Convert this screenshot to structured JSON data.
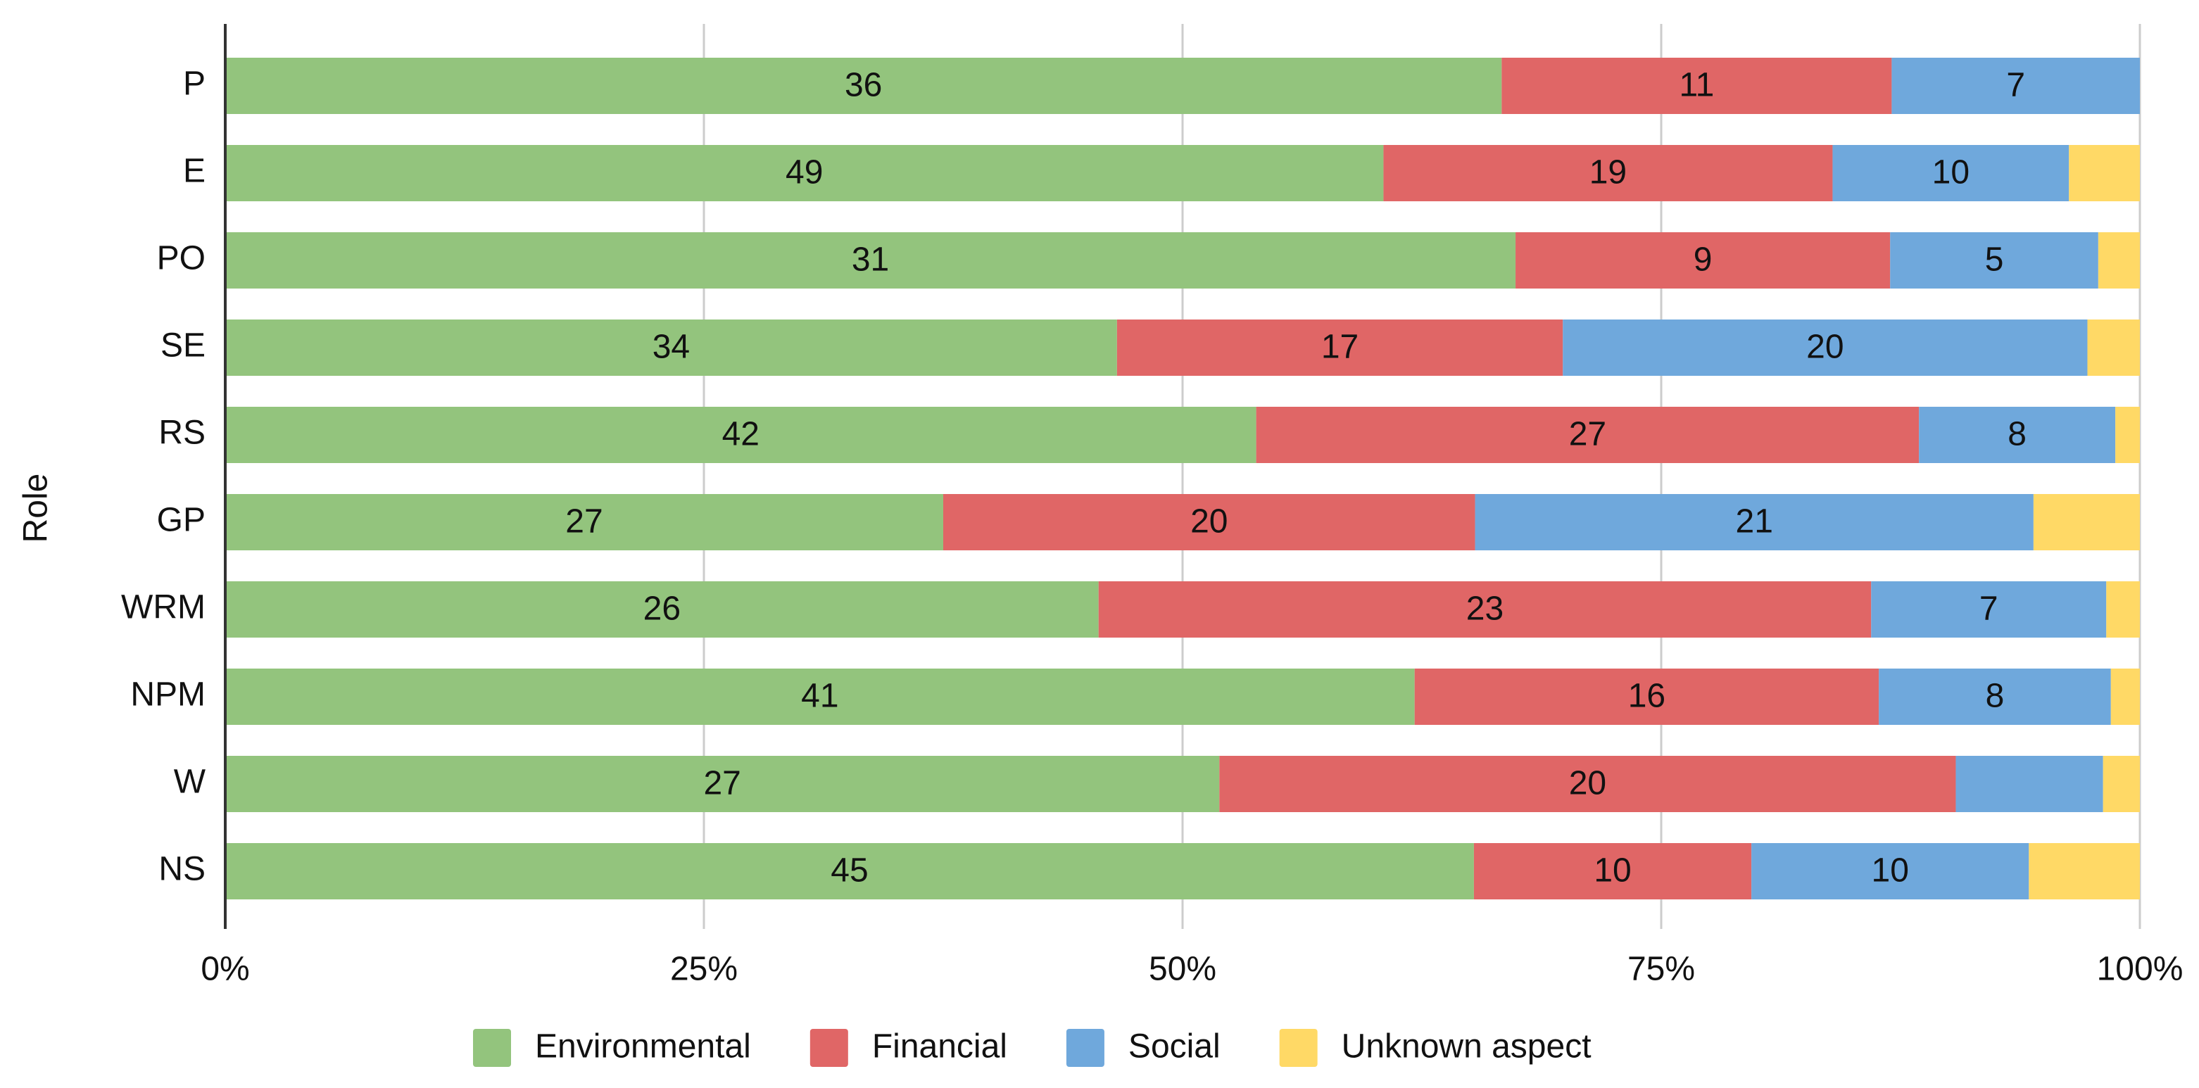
{
  "chart_data": {
    "type": "stacked_bar_100",
    "orientation": "horizontal",
    "y_label": "Role",
    "categories": [
      "P",
      "E",
      "PO",
      "SE",
      "RS",
      "GP",
      "WRM",
      "NPM",
      "W",
      "NS"
    ],
    "series": [
      {
        "name": "Environmental",
        "color": "#93c47d",
        "values": [
          36,
          49,
          31,
          34,
          42,
          27,
          26,
          41,
          27,
          45
        ]
      },
      {
        "name": "Financial",
        "color": "#e06666",
        "values": [
          11,
          19,
          9,
          17,
          27,
          20,
          23,
          16,
          20,
          10
        ]
      },
      {
        "name": "Social",
        "color": "#6fa8dc",
        "values": [
          7,
          10,
          5,
          20,
          8,
          21,
          7,
          8,
          4,
          10
        ],
        "value_labels": [
          "7",
          "10",
          "5",
          "20",
          "8",
          "21",
          "7",
          "8",
          null,
          "10"
        ]
      },
      {
        "name": "Unknown aspect",
        "color": "#ffd966",
        "values": [
          0,
          3,
          1,
          2,
          1,
          4,
          1,
          1,
          1,
          4
        ],
        "value_labels": [
          null,
          null,
          null,
          null,
          null,
          null,
          null,
          null,
          null,
          null
        ]
      }
    ],
    "xlim": [
      0,
      100
    ],
    "xticks": [
      {
        "value": 0,
        "label": "0%"
      },
      {
        "value": 25,
        "label": "25%"
      },
      {
        "value": 50,
        "label": "50%"
      },
      {
        "value": 75,
        "label": "75%"
      },
      {
        "value": 100,
        "label": "100%"
      }
    ],
    "grid": true,
    "legend": "bottom"
  }
}
